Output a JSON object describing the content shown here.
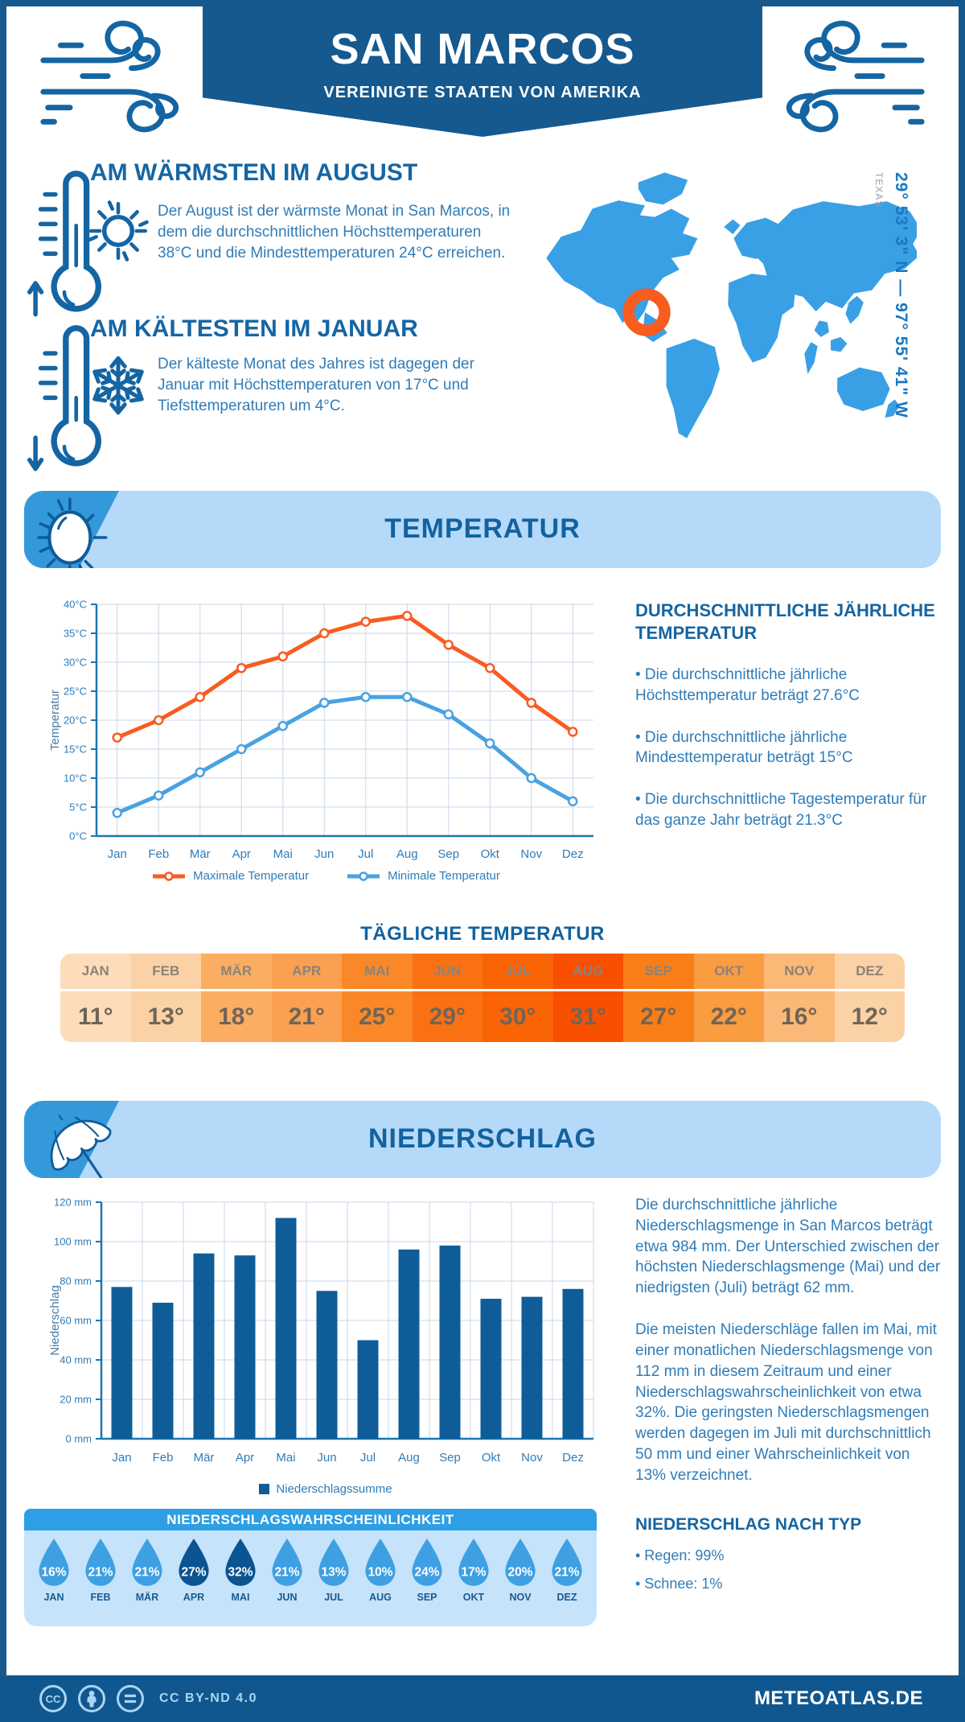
{
  "header": {
    "title": "SAN MARCOS",
    "subtitle": "VEREINIGTE STAATEN VON AMERIKA"
  },
  "location": {
    "coordinates": "29° 53' 3\" N — 97° 55' 41\" W",
    "region": "TEXAS"
  },
  "warmest": {
    "title": "AM WÄRMSTEN IM AUGUST",
    "text": "Der August ist der wärmste Monat in San Marcos, in dem die durchschnittlichen Höchsttemperaturen 38°C und die Mindesttemperaturen 24°C erreichen."
  },
  "coldest": {
    "title": "AM KÄLTESTEN IM JANUAR",
    "text": "Der kälteste Monat des Jahres ist dagegen der Januar mit Höchsttemperaturen von 17°C und Tiefsttemperaturen um 4°C."
  },
  "temperature_section": {
    "banner_title": "TEMPERATUR",
    "summary_title": "DURCHSCHNITTLICHE JÄHRLICHE TEMPERATUR",
    "bullets": [
      "• Die durchschnittliche jährliche Höchsttemperatur beträgt 27.6°C",
      "• Die durchschnittliche jährliche Mindesttemperatur beträgt 15°C",
      "• Die durchschnittliche Tagestemperatur für das ganze Jahr beträgt 21.3°C"
    ]
  },
  "daily_temperature": {
    "title": "TÄGLICHE TEMPERATUR",
    "months": [
      "JAN",
      "FEB",
      "MÄR",
      "APR",
      "MAI",
      "JUN",
      "JUL",
      "AUG",
      "SEP",
      "OKT",
      "NOV",
      "DEZ"
    ],
    "values": [
      "11°",
      "13°",
      "18°",
      "21°",
      "25°",
      "29°",
      "30°",
      "31°",
      "27°",
      "22°",
      "16°",
      "12°"
    ],
    "cell_colors": [
      "#FCDCB9",
      "#FBD2A6",
      "#FBAD62",
      "#FBA050",
      "#FA8828",
      "#FA7113",
      "#FA6405",
      "#F94F00",
      "#FA7E17",
      "#FA9C40",
      "#FBB877",
      "#FBD2A6"
    ]
  },
  "precipitation_section": {
    "banner_title": "NIEDERSCHLAG",
    "paragraphs": [
      "Die durchschnittliche jährliche Niederschlagsmenge in San Marcos beträgt etwa 984 mm. Der Unterschied zwischen der höchsten Niederschlagsmenge (Mai) und der niedrigsten (Juli) beträgt 62 mm.",
      "Die meisten Niederschläge fallen im Mai, mit einer monatlichen Niederschlagsmenge von 112 mm in diesem Zeitraum und einer Niederschlagswahrscheinlichkeit von etwa 32%. Die geringsten Niederschlagsmengen werden dagegen im Juli mit durchschnittlich 50 mm und einer Wahrscheinlichkeit von 13% verzeichnet."
    ],
    "type_title": "NIEDERSCHLAG NACH TYP",
    "type_bullets": [
      "• Regen: 99%",
      "• Schnee: 1%"
    ]
  },
  "probability": {
    "title": "NIEDERSCHLAGSWAHRSCHEINLICHKEIT",
    "months": [
      "JAN",
      "FEB",
      "MÄR",
      "APR",
      "MAI",
      "JUN",
      "JUL",
      "AUG",
      "SEP",
      "OKT",
      "NOV",
      "DEZ"
    ],
    "values": [
      "16%",
      "21%",
      "21%",
      "27%",
      "32%",
      "21%",
      "13%",
      "10%",
      "24%",
      "17%",
      "20%",
      "21%"
    ],
    "dark": [
      false,
      false,
      false,
      true,
      true,
      false,
      false,
      false,
      false,
      false,
      false,
      false
    ],
    "drop_color": "#3EA0E2",
    "drop_color_dark": "#0B5391"
  },
  "chart_data": [
    {
      "type": "line",
      "categories": [
        "Jan",
        "Feb",
        "Mär",
        "Apr",
        "Mai",
        "Jun",
        "Jul",
        "Aug",
        "Sep",
        "Okt",
        "Nov",
        "Dez"
      ],
      "series": [
        {
          "name": "Maximale Temperatur",
          "color": "#F95B22",
          "values": [
            17,
            20,
            24,
            29,
            31,
            35,
            37,
            38,
            33,
            29,
            23,
            18
          ]
        },
        {
          "name": "Minimale Temperatur",
          "color": "#49A2E1",
          "values": [
            4,
            7,
            11,
            15,
            19,
            23,
            24,
            24,
            21,
            16,
            10,
            6
          ]
        }
      ],
      "ylabel": "Temperatur",
      "ylim": [
        0,
        40
      ],
      "ytick_step": 5,
      "ytick_suffix": "°C",
      "grid": true,
      "legend_position": "bottom"
    },
    {
      "type": "bar",
      "categories": [
        "Jan",
        "Feb",
        "Mär",
        "Apr",
        "Mai",
        "Jun",
        "Jul",
        "Aug",
        "Sep",
        "Okt",
        "Nov",
        "Dez"
      ],
      "series": [
        {
          "name": "Niederschlagssumme",
          "color": "#0E5D99",
          "values": [
            77,
            69,
            94,
            93,
            112,
            75,
            50,
            96,
            98,
            71,
            72,
            76
          ]
        }
      ],
      "ylabel": "Niederschlag",
      "ylim": [
        0,
        120
      ],
      "ytick_step": 20,
      "ytick_suffix": " mm",
      "grid": true,
      "legend_position": "bottom"
    }
  ],
  "footer": {
    "license": "CC BY-ND 4.0",
    "site": "METEOATLAS.DE"
  },
  "colors": {
    "frame_blue": "#15598F",
    "accent_blue": "#3399DB",
    "light_blue": "#B5D9F8",
    "map_blue": "#39A0E5",
    "marker_orange": "#F85C1E"
  }
}
